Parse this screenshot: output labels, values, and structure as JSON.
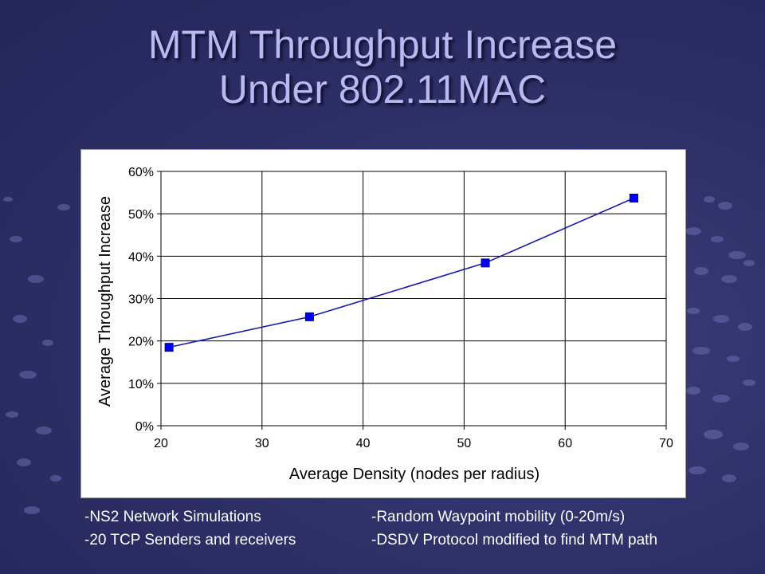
{
  "slide": {
    "title_line1": "MTM Throughput Increase",
    "title_line2": "Under 802.11MAC"
  },
  "notes": {
    "left": [
      "-NS2 Network Simulations",
      "-20 TCP Senders and receivers"
    ],
    "right": [
      "-Random Waypoint mobility (0-20m/s)",
      "-DSDV Protocol modified to find MTM path"
    ]
  },
  "chart_data": {
    "type": "line",
    "title": "",
    "xlabel": "Average Density (nodes per radius)",
    "ylabel": "Average Throughput Increase",
    "x_ticks": [
      "20",
      "30",
      "40",
      "50",
      "60",
      "70"
    ],
    "y_ticks": [
      "0%",
      "10%",
      "20%",
      "30%",
      "40%",
      "50%",
      "60%"
    ],
    "xlim": [
      20,
      70
    ],
    "ylim": [
      0,
      60
    ],
    "grid": true,
    "legend": "none",
    "series": [
      {
        "color": "#0000ff",
        "x": [
          20.8,
          34.7,
          52.1,
          66.8
        ],
        "y": [
          18.5,
          25.7,
          38.4,
          53.7
        ]
      }
    ]
  }
}
